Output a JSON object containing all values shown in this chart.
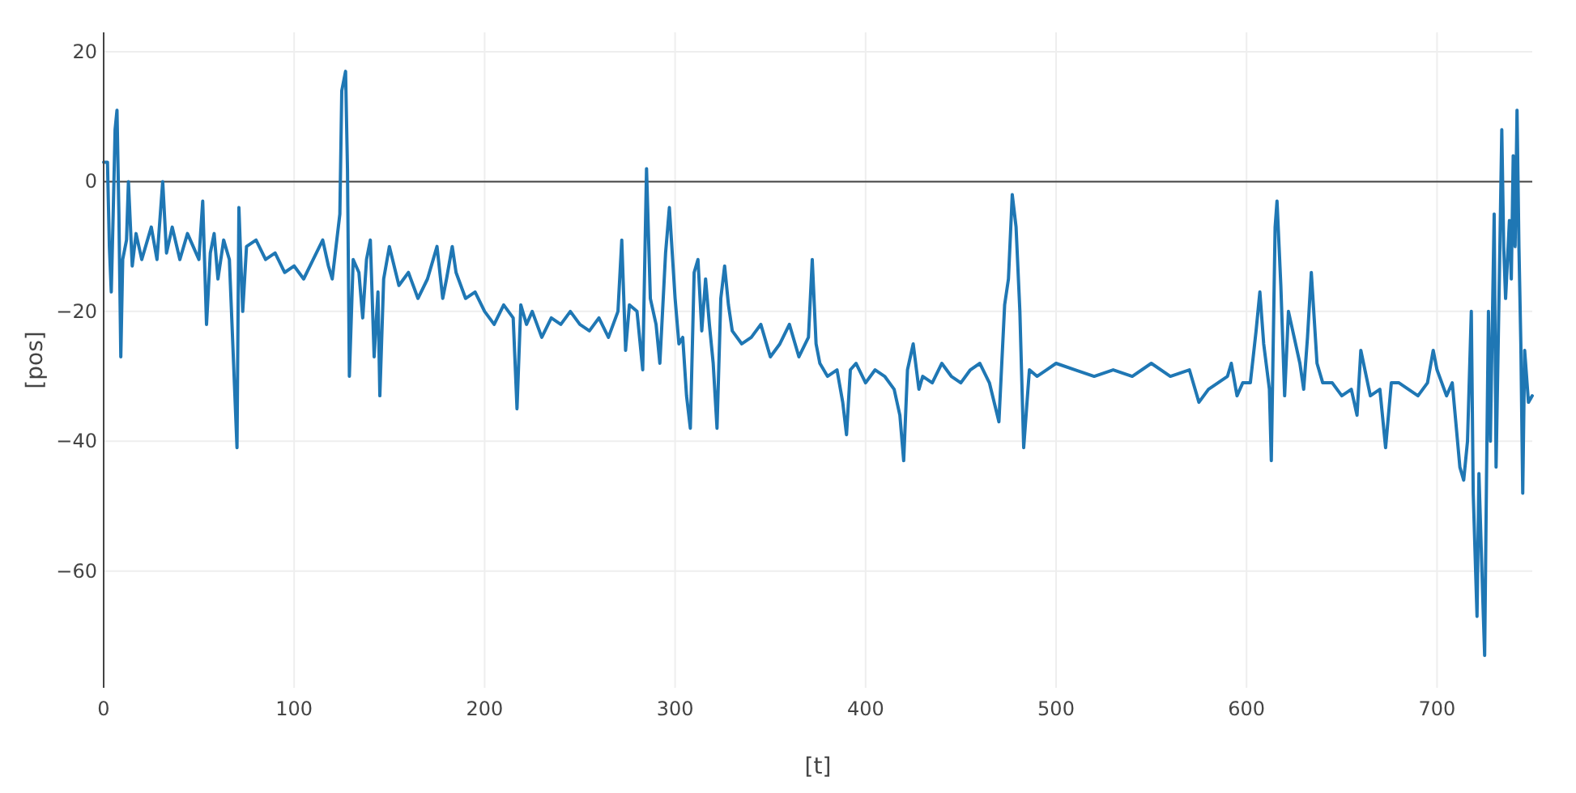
{
  "chart_data": {
    "type": "line",
    "xlabel": "[t]",
    "ylabel": "[pos]",
    "xlim": [
      0,
      750
    ],
    "ylim": [
      -78,
      23
    ],
    "xticks": [
      0,
      100,
      200,
      300,
      400,
      500,
      600,
      700
    ],
    "yticks": [
      -60,
      -40,
      -20,
      0,
      20
    ],
    "grid": true,
    "marker": "none",
    "line_style": "solid",
    "ref_lines": [
      {
        "axis": "y",
        "value": 0,
        "color": "#444444"
      }
    ],
    "series": [
      {
        "color": "#1f77b4",
        "x": [
          0,
          2,
          3,
          4,
          5,
          6,
          7,
          8,
          9,
          10,
          12,
          13,
          15,
          17,
          20,
          25,
          28,
          31,
          33,
          36,
          40,
          44,
          47,
          50,
          52,
          54,
          56,
          58,
          60,
          63,
          66,
          70,
          71,
          73,
          75,
          80,
          85,
          90,
          95,
          100,
          105,
          110,
          115,
          118,
          120,
          124,
          125,
          127,
          128,
          129,
          131,
          134,
          136,
          138,
          140,
          142,
          144,
          145,
          147,
          150,
          155,
          160,
          165,
          170,
          175,
          178,
          180,
          183,
          185,
          190,
          195,
          200,
          205,
          210,
          215,
          217,
          219,
          222,
          225,
          230,
          235,
          240,
          245,
          250,
          255,
          260,
          265,
          270,
          272,
          274,
          276,
          280,
          283,
          285,
          287,
          290,
          292,
          295,
          297,
          300,
          302,
          304,
          306,
          308,
          310,
          312,
          314,
          316,
          318,
          320,
          322,
          324,
          326,
          328,
          330,
          335,
          340,
          345,
          350,
          355,
          360,
          365,
          370,
          372,
          374,
          376,
          380,
          385,
          388,
          390,
          392,
          395,
          400,
          405,
          410,
          415,
          418,
          420,
          422,
          425,
          428,
          430,
          435,
          440,
          445,
          450,
          455,
          460,
          465,
          470,
          473,
          475,
          477,
          479,
          481,
          483,
          486,
          490,
          495,
          500,
          510,
          520,
          530,
          540,
          550,
          560,
          570,
          575,
          580,
          585,
          590,
          592,
          595,
          598,
          602,
          605,
          607,
          609,
          612,
          613,
          615,
          616,
          618,
          620,
          622,
          625,
          628,
          630,
          632,
          634,
          637,
          640,
          645,
          650,
          655,
          658,
          660,
          665,
          670,
          673,
          676,
          680,
          685,
          690,
          695,
          698,
          700,
          705,
          708,
          712,
          714,
          716,
          718,
          719,
          721,
          722,
          724,
          725,
          726,
          727,
          728,
          730,
          731,
          733,
          734,
          735,
          736,
          738,
          739,
          740,
          741,
          742,
          743,
          744,
          745,
          746,
          748,
          750
        ],
        "values": [
          3,
          3,
          -10,
          -17,
          -5,
          8,
          11,
          -5,
          -27,
          -12,
          -9,
          0,
          -13,
          -8,
          -12,
          -7,
          -12,
          0,
          -11,
          -7,
          -12,
          -8,
          -10,
          -12,
          -3,
          -22,
          -11,
          -8,
          -15,
          -9,
          -12,
          -41,
          -4,
          -20,
          -10,
          -9,
          -12,
          -11,
          -14,
          -13,
          -15,
          -12,
          -9,
          -13,
          -15,
          -5,
          14,
          17,
          2,
          -30,
          -12,
          -14,
          -21,
          -12,
          -9,
          -27,
          -17,
          -33,
          -15,
          -10,
          -16,
          -14,
          -18,
          -15,
          -10,
          -18,
          -15,
          -10,
          -14,
          -18,
          -17,
          -20,
          -22,
          -19,
          -21,
          -35,
          -19,
          -22,
          -20,
          -24,
          -21,
          -22,
          -20,
          -22,
          -23,
          -21,
          -24,
          -20,
          -9,
          -26,
          -19,
          -20,
          -29,
          2,
          -18,
          -22,
          -28,
          -11,
          -4,
          -18,
          -25,
          -24,
          -33,
          -38,
          -14,
          -12,
          -23,
          -15,
          -22,
          -28,
          -38,
          -18,
          -13,
          -19,
          -23,
          -25,
          -24,
          -22,
          -27,
          -25,
          -22,
          -27,
          -24,
          -12,
          -25,
          -28,
          -30,
          -29,
          -34,
          -39,
          -29,
          -28,
          -31,
          -29,
          -30,
          -32,
          -36,
          -43,
          -29,
          -25,
          -32,
          -30,
          -31,
          -28,
          -30,
          -31,
          -29,
          -28,
          -31,
          -37,
          -19,
          -15,
          -2,
          -7,
          -20,
          -41,
          -29,
          -30,
          -29,
          -28,
          -29,
          -30,
          -29,
          -30,
          -28,
          -30,
          -29,
          -34,
          -32,
          -31,
          -30,
          -28,
          -33,
          -31,
          -31,
          -23,
          -17,
          -25,
          -32,
          -43,
          -7,
          -3,
          -16,
          -33,
          -20,
          -24,
          -28,
          -32,
          -24,
          -14,
          -28,
          -31,
          -31,
          -33,
          -32,
          -36,
          -26,
          -33,
          -32,
          -41,
          -31,
          -31,
          -32,
          -33,
          -31,
          -26,
          -29,
          -33,
          -31,
          -44,
          -46,
          -40,
          -20,
          -48,
          -67,
          -45,
          -64,
          -73,
          -45,
          -20,
          -40,
          -5,
          -44,
          -10,
          8,
          -10,
          -18,
          -6,
          -15,
          4,
          -10,
          11,
          -10,
          -25,
          -48,
          -26,
          -34,
          -33
        ]
      }
    ]
  }
}
